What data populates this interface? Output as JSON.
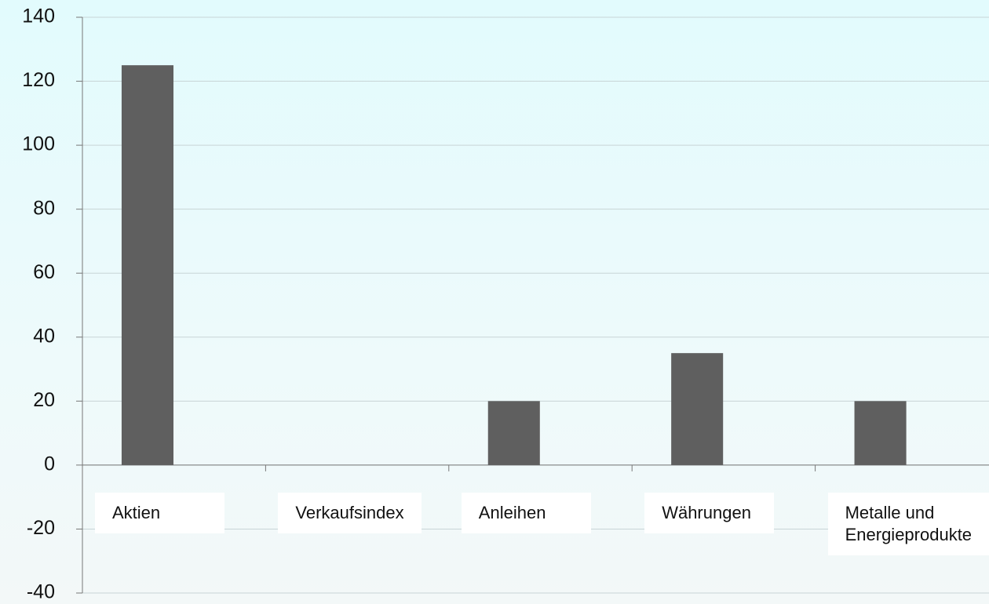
{
  "chart_data": {
    "type": "bar",
    "categories": [
      "Aktien",
      "Verkaufsindex",
      "Anleihen",
      "Währungen",
      "Metalle und Energieprodukte"
    ],
    "values": [
      125,
      0,
      20,
      35,
      20
    ],
    "color": "#5f5f5f",
    "ylim": [
      -40,
      140
    ],
    "yticks": [
      -40,
      -20,
      0,
      20,
      40,
      60,
      80,
      100,
      120,
      140
    ],
    "grid": true
  }
}
